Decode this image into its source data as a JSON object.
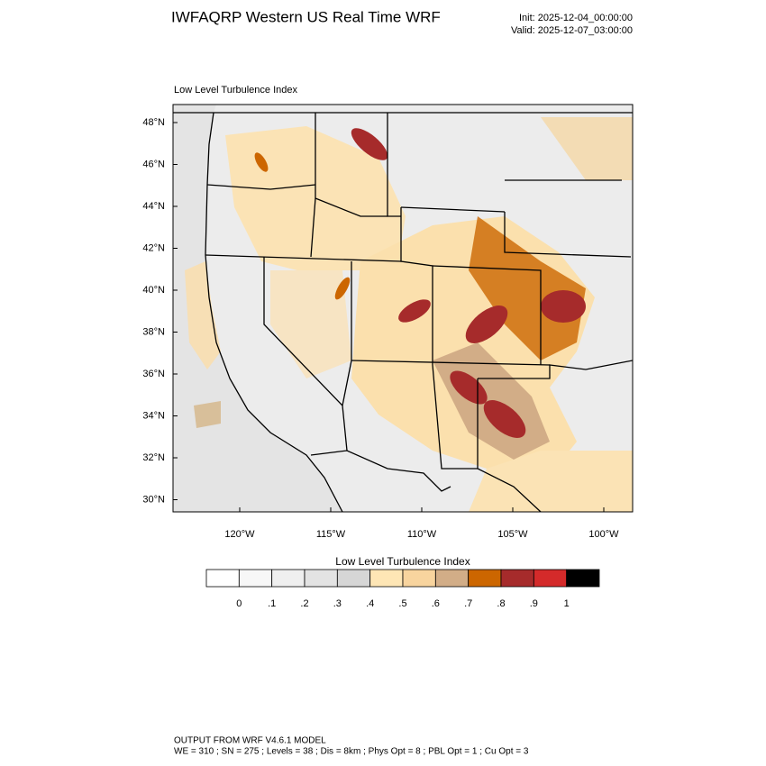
{
  "header": {
    "title": "IWFAQRP Western US Real Time WRF",
    "init": "Init: 2025-12-04_00:00:00",
    "valid": "Valid: 2025-12-07_03:00:00"
  },
  "map": {
    "subtitle": "Low Level Turbulence Index",
    "lat_labels": [
      "48°N",
      "46°N",
      "44°N",
      "42°N",
      "40°N",
      "38°N",
      "36°N",
      "34°N",
      "32°N",
      "30°N"
    ],
    "lon_labels": [
      "120°W",
      "115°W",
      "110°W",
      "105°W",
      "100°W"
    ]
  },
  "colorbar": {
    "title": "Low Level Turbulence Index",
    "labels": [
      "0",
      ".1",
      ".2",
      ".3",
      ".4",
      ".5",
      ".6",
      ".7",
      ".8",
      ".9",
      "1"
    ],
    "colors": [
      "#ffffff",
      "#f7f7f7",
      "#efefef",
      "#e3e3e3",
      "#d6d6d6",
      "#fee6b5",
      "#f8d49e",
      "#d2ad87",
      "#cc6600",
      "#a62b2b",
      "#d42a2a",
      "#000000"
    ]
  },
  "footer": {
    "line1": "OUTPUT FROM WRF V4.6.1 MODEL",
    "line2": "WE = 310 ; SN = 275 ; Levels = 38 ; Dis = 8km ; Phys Opt = 8 ; PBL Opt = 1 ; Cu Opt = 3"
  }
}
